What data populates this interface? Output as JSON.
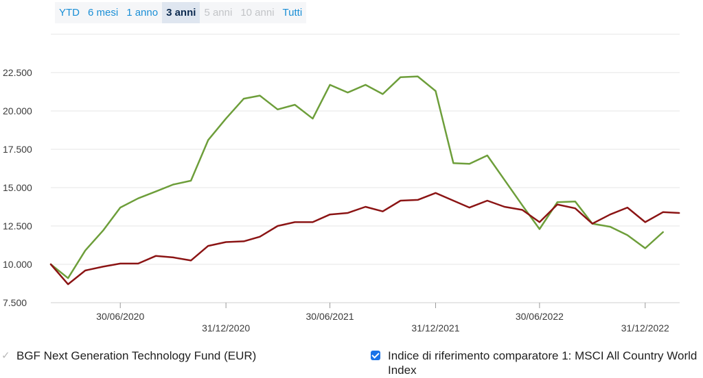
{
  "range_selector": [
    {
      "label": "YTD",
      "state": "enabled"
    },
    {
      "label": "6 mesi",
      "state": "enabled"
    },
    {
      "label": "1 anno",
      "state": "enabled"
    },
    {
      "label": "3 anni",
      "state": "active"
    },
    {
      "label": "5 anni",
      "state": "disabled"
    },
    {
      "label": "10 anni",
      "state": "disabled"
    },
    {
      "label": "Tutti",
      "state": "enabled"
    }
  ],
  "legend": {
    "fund_mark": "✓",
    "fund_label": "BGF Next Generation Technology Fund (EUR)",
    "index_label": "Indice di riferimento comparatore 1: MSCI All Country World Index"
  },
  "chart_data": {
    "type": "line",
    "title": "",
    "xlabel": "",
    "ylabel": "",
    "ylim": [
      7500,
      25000
    ],
    "yticks": [
      7500,
      10000,
      12500,
      15000,
      17500,
      20000,
      22500
    ],
    "ytick_labels": [
      "7.500",
      "10.000",
      "12.500",
      "15.000",
      "17.500",
      "20.000",
      "22.500"
    ],
    "xticks": [
      "2020-06-30",
      "2020-12-31",
      "2021-06-30",
      "2021-12-31",
      "2022-06-30",
      "2022-12-31"
    ],
    "xtick_labels": [
      "30/06/2020",
      "31/12/2020",
      "30/06/2021",
      "31/12/2021",
      "30/06/2022",
      "31/12/2022"
    ],
    "xlim": [
      "2020-03-01",
      "2023-03-01"
    ],
    "grid": true,
    "legend_position": "bottom",
    "x": [
      "2020-03-01",
      "2020-03-31",
      "2020-04-30",
      "2020-05-31",
      "2020-06-30",
      "2020-07-31",
      "2020-08-31",
      "2020-09-30",
      "2020-10-31",
      "2020-11-30",
      "2020-12-31",
      "2021-01-31",
      "2021-02-28",
      "2021-03-31",
      "2021-04-30",
      "2021-05-31",
      "2021-06-30",
      "2021-07-31",
      "2021-08-31",
      "2021-09-30",
      "2021-10-31",
      "2021-11-30",
      "2021-12-31",
      "2022-01-31",
      "2022-02-28",
      "2022-03-31",
      "2022-04-30",
      "2022-05-31",
      "2022-06-30",
      "2022-07-31",
      "2022-08-31",
      "2022-09-30",
      "2022-10-31",
      "2022-11-30",
      "2022-12-31",
      "2023-01-31",
      "2023-02-28"
    ],
    "series": [
      {
        "name": "BGF Next Generation Technology Fund (EUR)",
        "color": "#6d9e3a",
        "values": [
          10000,
          9100,
          10900,
          12200,
          13700,
          14300,
          14750,
          15200,
          15450,
          18100,
          19500,
          20800,
          21000,
          20100,
          20400,
          19500,
          21700,
          21200,
          21700,
          21100,
          22200,
          22250,
          21300,
          16600,
          16550,
          17100,
          15500,
          13850,
          12300,
          14050,
          14100,
          12650,
          12450,
          11900,
          11050,
          12100,
          null
        ]
      },
      {
        "name": "Indice di riferimento comparatore 1: MSCI All Country World Index",
        "color": "#8b1414",
        "values": [
          10000,
          8700,
          9600,
          9850,
          10050,
          10050,
          10550,
          10450,
          10250,
          11200,
          11450,
          11500,
          11800,
          12500,
          12750,
          12750,
          13250,
          13350,
          13750,
          13450,
          14150,
          14200,
          14650,
          14150,
          13700,
          14150,
          13750,
          13550,
          12750,
          13900,
          13650,
          12650,
          13250,
          13700,
          12750,
          13400,
          13350
        ]
      }
    ]
  }
}
